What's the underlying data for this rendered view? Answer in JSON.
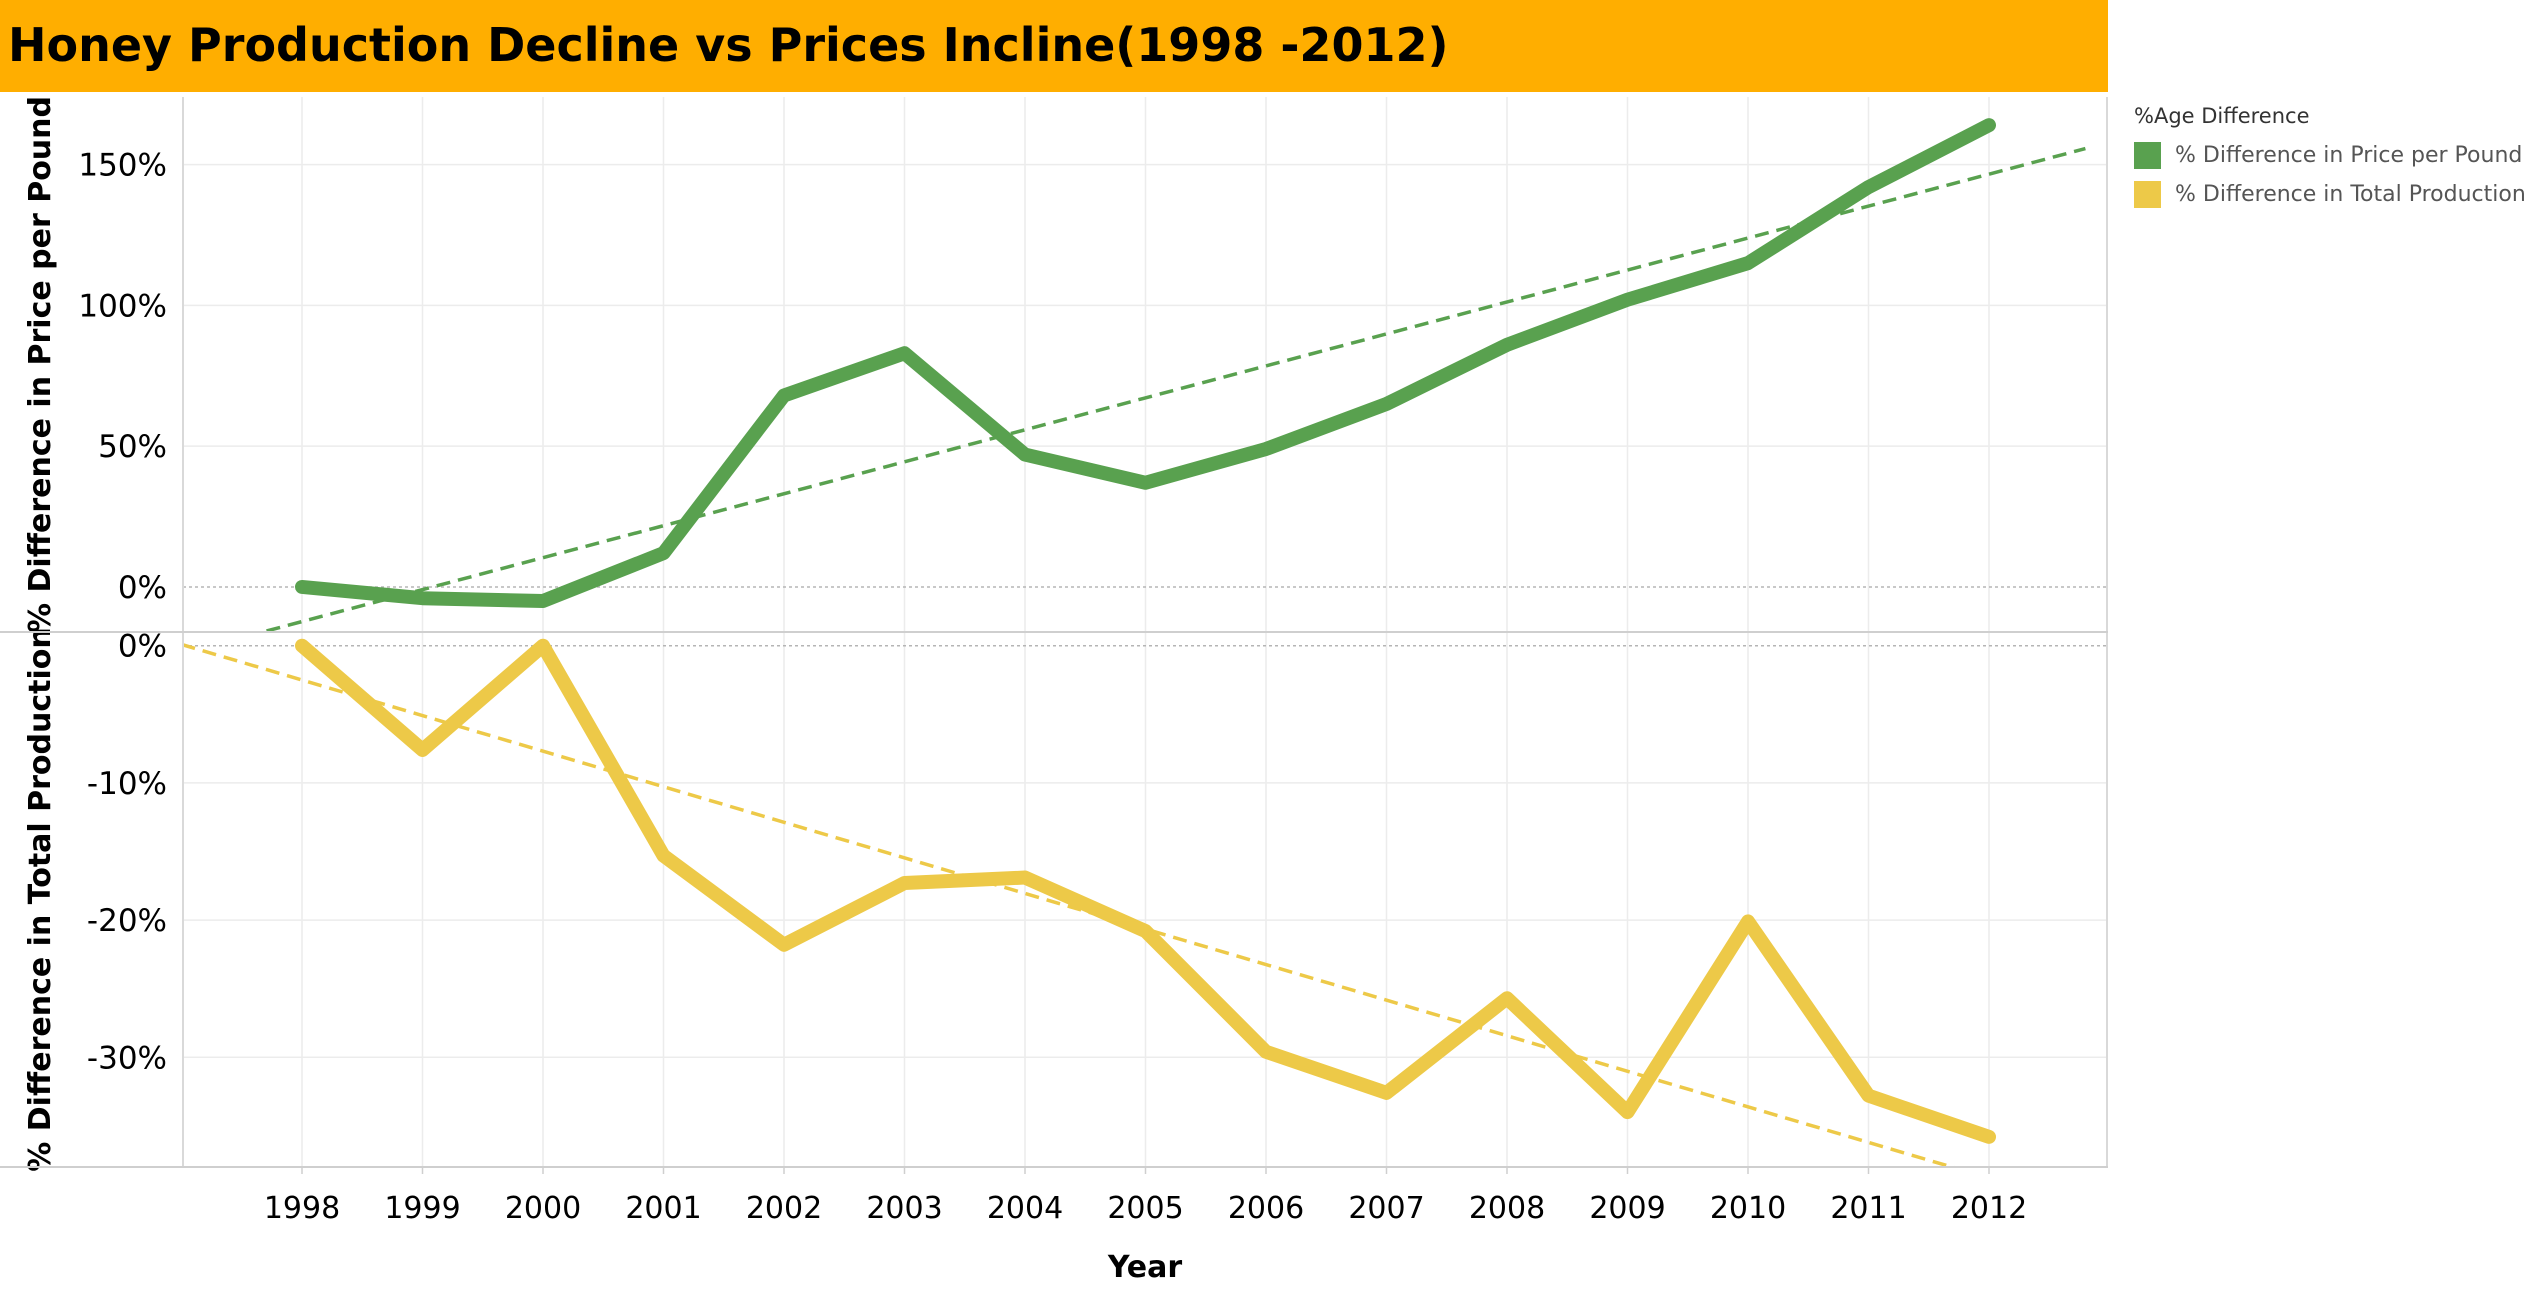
{
  "title": "Honey Production Decline vs Prices Incline(1998 -2012)",
  "colors": {
    "title_bg": "#FFAE00",
    "price": "#59A14F",
    "production": "#EDC948"
  },
  "legend": {
    "title": "%Age Difference",
    "items": [
      {
        "label": "% Difference in Price per Pound",
        "color": "#59A14F"
      },
      {
        "label": "% Difference in Total Production",
        "color": "#EDC948"
      }
    ]
  },
  "chart_data": {
    "type": "line",
    "x": [
      "1998",
      "1999",
      "2000",
      "2001",
      "2002",
      "2003",
      "2004",
      "2005",
      "2006",
      "2007",
      "2008",
      "2009",
      "2010",
      "2011",
      "2012"
    ],
    "xlabel": "Year",
    "panels": [
      {
        "ylabel": "% Difference in Price per Pound",
        "yticks": [
          "0%",
          "50%",
          "100%",
          "150%"
        ],
        "ylim": [
          -16,
          174
        ],
        "series": {
          "name": "% Difference in Price per Pound",
          "values": [
            0,
            -4,
            -5,
            12,
            68,
            83,
            47,
            37,
            49,
            65,
            86,
            102,
            115,
            142,
            164
          ]
        },
        "trend": [
          -12.3,
          146.6
        ]
      },
      {
        "ylabel": "% Difference in Total Production",
        "yticks": [
          "0%",
          "-10%",
          "-20%",
          "-30%"
        ],
        "ylim": [
          -38,
          1
        ],
        "series": {
          "name": "% Difference in Total Production",
          "values": [
            0,
            -7.6,
            0,
            -15.3,
            -21.8,
            -17.3,
            -16.9,
            -20.8,
            -29.6,
            -32.6,
            -25.7,
            -34,
            -20.1,
            -32.8,
            -35.8
          ]
        },
        "trend": [
          -2.5,
          -38.8
        ]
      }
    ],
    "grid": true,
    "legend_position": "right"
  }
}
